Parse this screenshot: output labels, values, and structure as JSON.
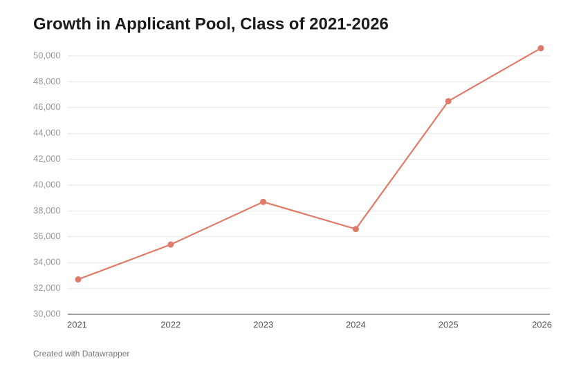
{
  "chart_data": {
    "type": "line",
    "title": "Growth in Applicant Pool, Class of 2021-2026",
    "note": "Created with Datawrapper",
    "x": [
      2021,
      2022,
      2023,
      2024,
      2025,
      2026
    ],
    "values": [
      32700,
      35400,
      38700,
      36600,
      46500,
      50600
    ],
    "color": "#e07a66",
    "xlim": [
      2021,
      2026
    ],
    "xticks": [
      2021,
      2022,
      2023,
      2024,
      2025,
      2026
    ],
    "ylim": [
      30000,
      50000
    ],
    "yticks": [
      {
        "value": 30000,
        "label": "30,000"
      },
      {
        "value": 32000,
        "label": "32,000"
      },
      {
        "value": 34000,
        "label": "34,000"
      },
      {
        "value": 36000,
        "label": "36,000"
      },
      {
        "value": 38000,
        "label": "38,000"
      },
      {
        "value": 40000,
        "label": "40,000"
      },
      {
        "value": 42000,
        "label": "42,000"
      },
      {
        "value": 44000,
        "label": "44,000"
      },
      {
        "value": 46000,
        "label": "46,000"
      },
      {
        "value": 48000,
        "label": "48,000"
      },
      {
        "value": 50000,
        "label": "50,000"
      }
    ],
    "grid": true
  }
}
